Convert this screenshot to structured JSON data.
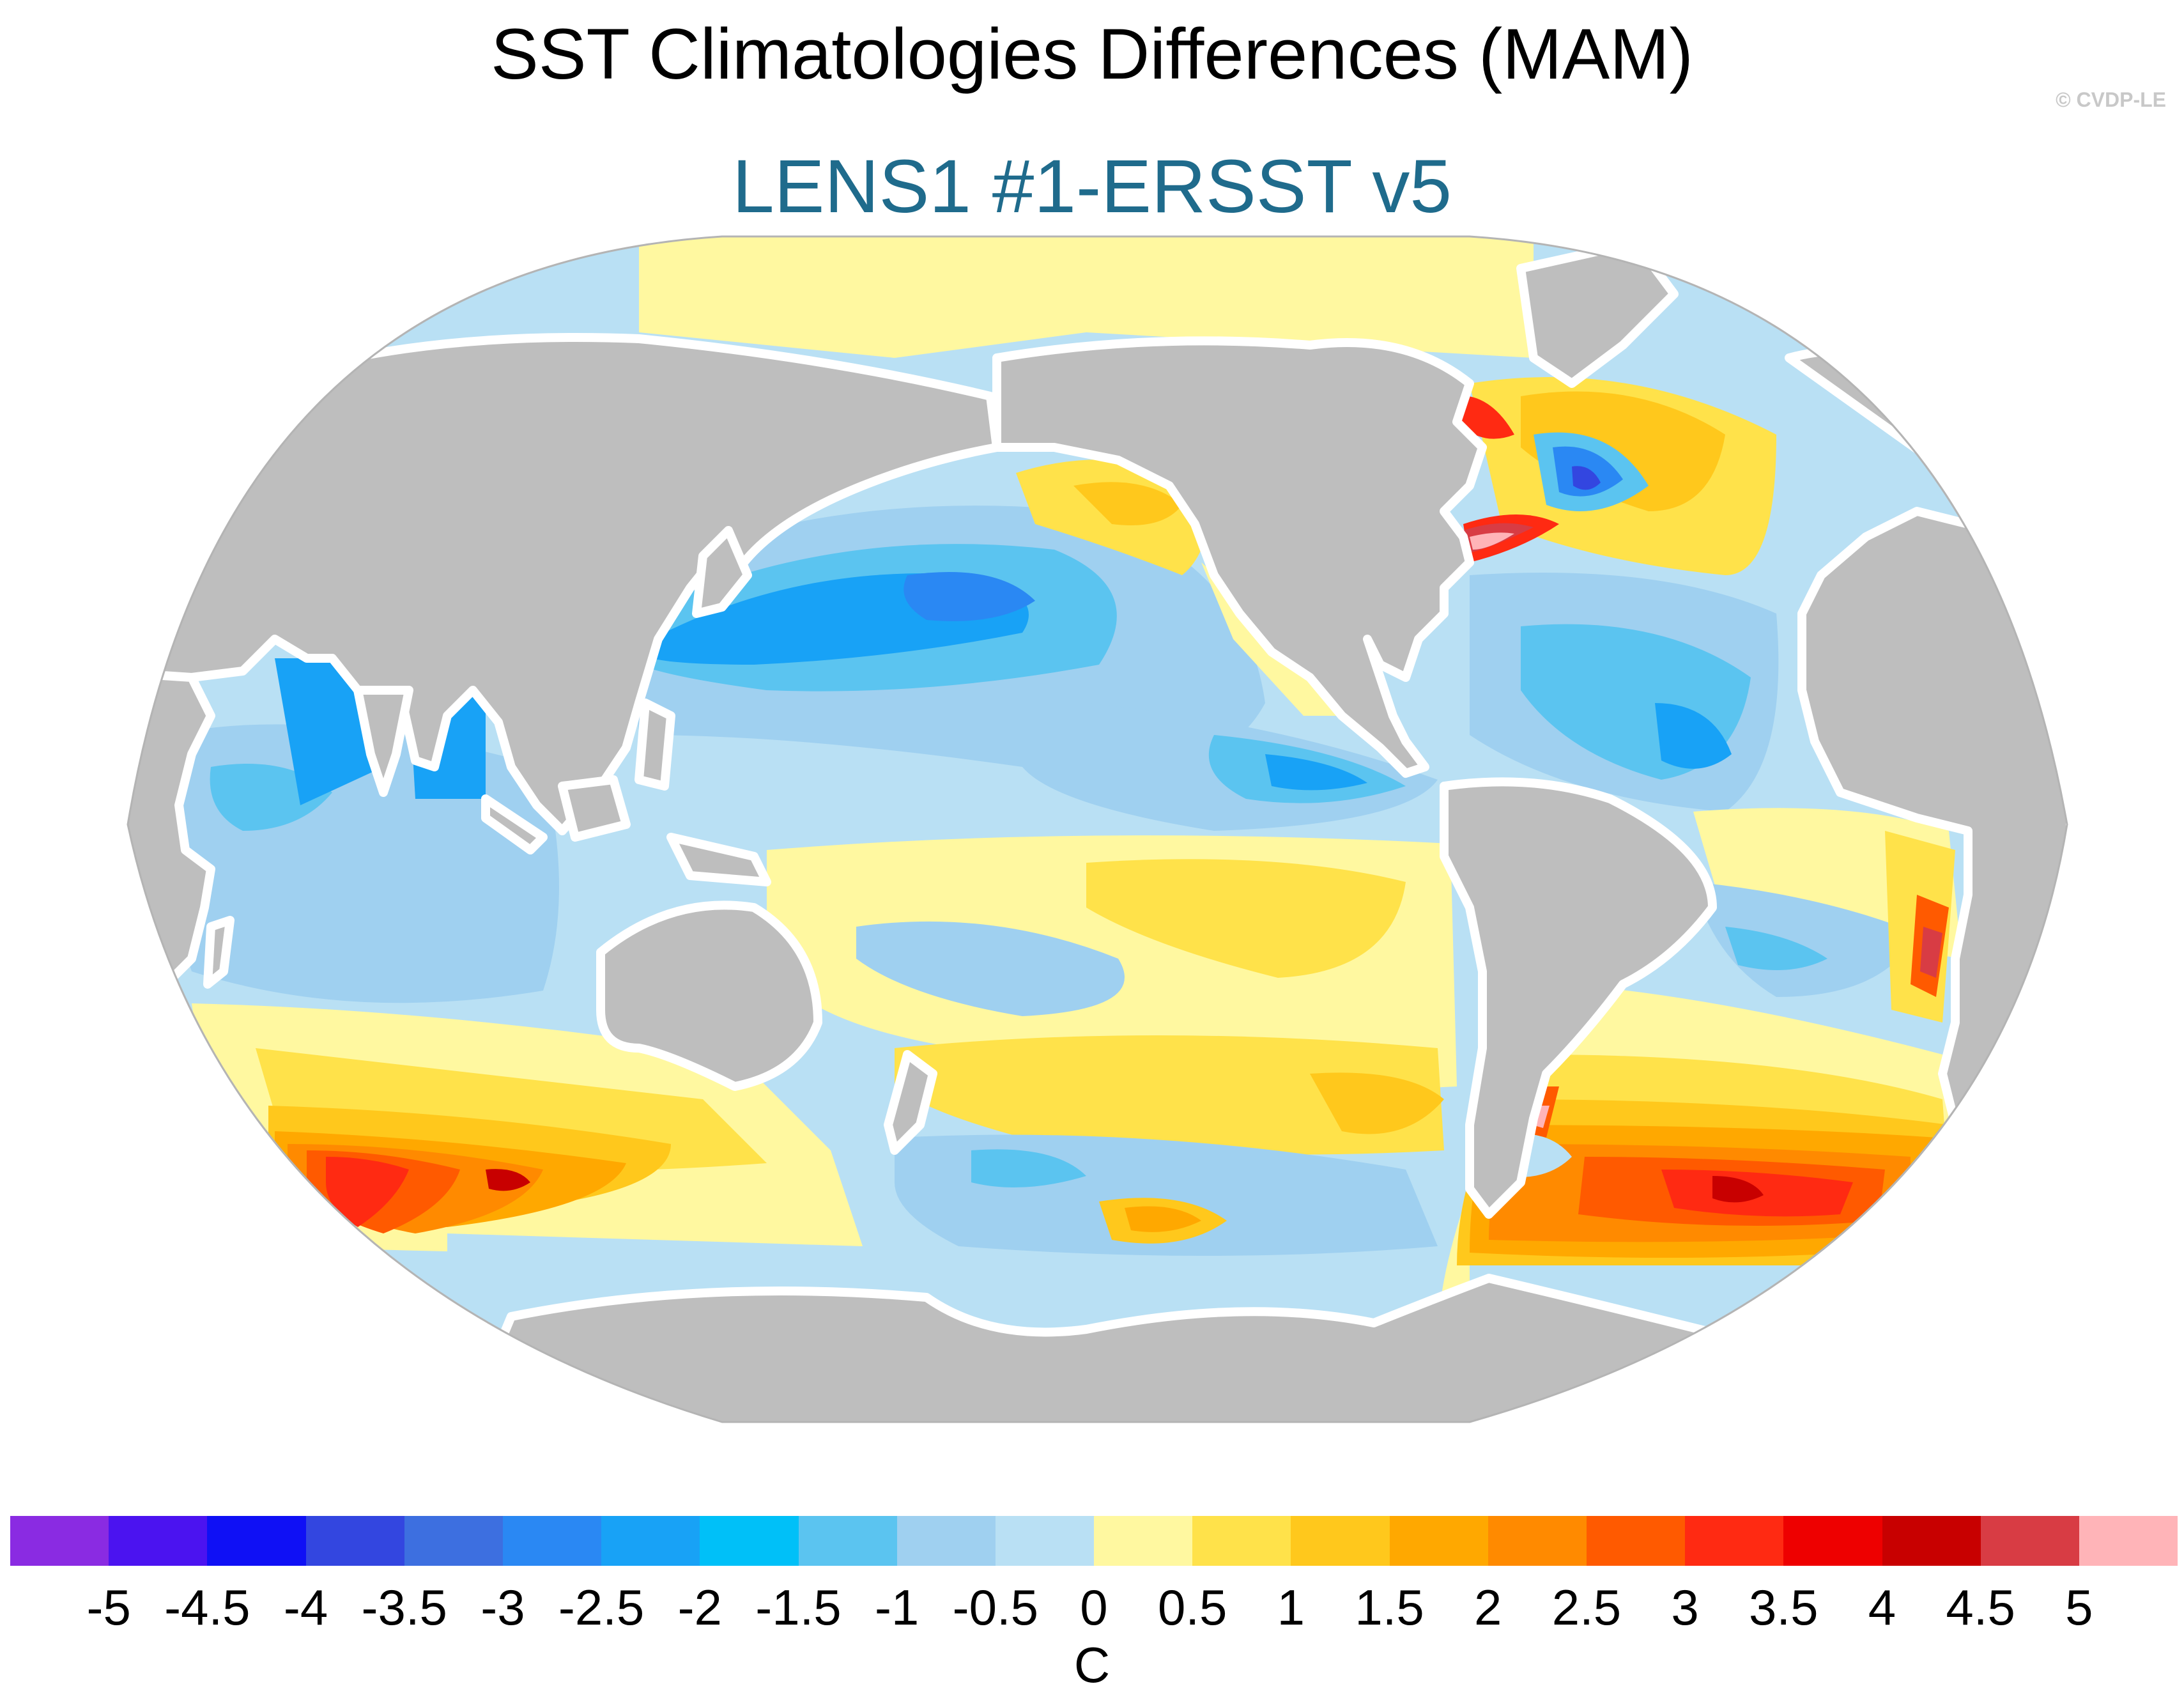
{
  "title": "SST Climatologies Differences (MAM)",
  "subtitle": "LENS1 #1-ERSST v5",
  "copyright": "© CVDP-LE",
  "colorbar": {
    "units": "C",
    "levels": [
      "-5",
      "-4.5",
      "-4",
      "-3.5",
      "-3",
      "-2.5",
      "-2",
      "-1.5",
      "-1",
      "-0.5",
      "0",
      "0.5",
      "1",
      "1.5",
      "2",
      "2.5",
      "3",
      "3.5",
      "4",
      "4.5",
      "5"
    ],
    "colors": [
      "#8a2be2",
      "#4b13f0",
      "#0f10f5",
      "#3346e0",
      "#3d6fe0",
      "#2a88f3",
      "#18a2f6",
      "#00c0f8",
      "#5bc4f0",
      "#9fd0f0",
      "#b9e0f4",
      "#fff8a0",
      "#ffe24a",
      "#ffc81c",
      "#ffa800",
      "#ff8a00",
      "#ff5a00",
      "#ff2a12",
      "#ee0000",
      "#c80000",
      "#d83c44",
      "#ffb4b8"
    ]
  },
  "map": {
    "projection": "Robinson (Pacific-centered)",
    "colors": {
      "land": "#bebebe",
      "coast": "#ffffff",
      "outline": "#b4b4b4"
    }
  }
}
